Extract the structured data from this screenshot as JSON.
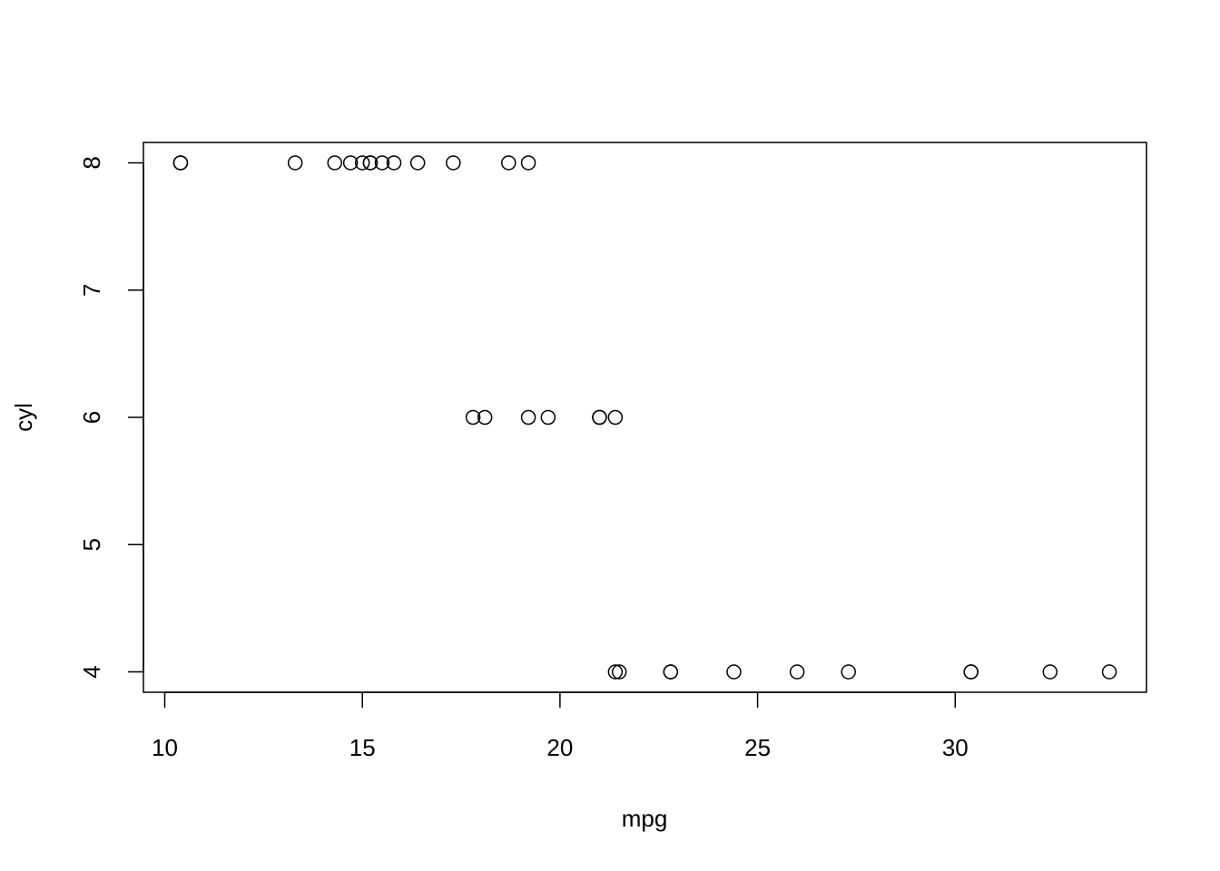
{
  "chart_data": {
    "type": "scatter",
    "title": "",
    "xlabel": "mpg",
    "ylabel": "cyl",
    "xlim": [
      9.46,
      34.84
    ],
    "ylim": [
      3.84,
      8.16
    ],
    "xticks": [
      10,
      15,
      20,
      25,
      30
    ],
    "xtick_labels": [
      "10",
      "15",
      "20",
      "25",
      "30"
    ],
    "yticks": [
      4,
      5,
      6,
      7,
      8
    ],
    "ytick_labels": [
      "4",
      "5",
      "6",
      "7",
      "8"
    ],
    "grid": false,
    "marker": "open-circle",
    "marker_color": "#000000",
    "x": [
      21.0,
      21.0,
      22.8,
      21.4,
      18.7,
      18.1,
      14.3,
      24.4,
      22.8,
      19.2,
      17.8,
      16.4,
      17.3,
      15.2,
      10.4,
      10.4,
      14.7,
      32.4,
      30.4,
      33.9,
      21.5,
      15.5,
      15.2,
      13.3,
      19.2,
      27.3,
      26.0,
      30.4,
      15.8,
      19.7,
      15.0,
      21.4
    ],
    "y": [
      6,
      6,
      4,
      6,
      8,
      6,
      8,
      4,
      4,
      6,
      6,
      8,
      8,
      8,
      8,
      8,
      8,
      4,
      4,
      4,
      4,
      8,
      8,
      8,
      8,
      4,
      4,
      4,
      8,
      6,
      8,
      4
    ]
  }
}
